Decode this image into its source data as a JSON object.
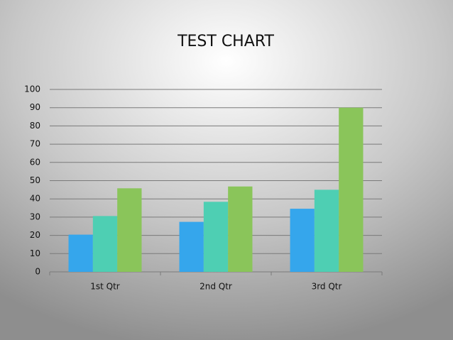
{
  "chart_data": {
    "type": "bar",
    "title": "TEST CHART",
    "categories": [
      "1st Qtr",
      "2nd Qtr",
      "3rd Qtr"
    ],
    "series": [
      {
        "color": "#35a6ec",
        "values": [
          20.4,
          27.4,
          34.6
        ]
      },
      {
        "color": "#4ecfb3",
        "values": [
          30.6,
          38.4,
          45
        ]
      },
      {
        "color": "#8ac55a",
        "values": [
          45.8,
          46.8,
          90
        ]
      }
    ],
    "ylim": [
      0,
      100
    ],
    "yticks": [
      0,
      10,
      20,
      30,
      40,
      50,
      60,
      70,
      80,
      90,
      100
    ],
    "grid": true
  }
}
